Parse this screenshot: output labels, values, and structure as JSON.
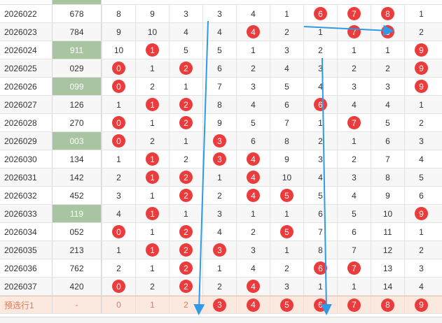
{
  "rows": [
    {
      "issue": "2026022",
      "code": "678",
      "code_hl": false,
      "nums": [
        "8",
        "9",
        "3",
        "3",
        "4",
        "1",
        "6",
        "7",
        "8",
        "1"
      ],
      "balls": [
        false,
        false,
        false,
        false,
        false,
        false,
        true,
        true,
        true,
        false
      ]
    },
    {
      "issue": "2026023",
      "code": "784",
      "code_hl": false,
      "nums": [
        "9",
        "10",
        "4",
        "4",
        "4",
        "2",
        "1",
        "7",
        "8",
        "2"
      ],
      "balls": [
        false,
        false,
        false,
        false,
        true,
        false,
        false,
        true,
        true,
        false
      ]
    },
    {
      "issue": "2026024",
      "code": "911",
      "code_hl": true,
      "nums": [
        "10",
        "1",
        "5",
        "5",
        "1",
        "3",
        "2",
        "1",
        "1",
        "9"
      ],
      "balls": [
        false,
        true,
        false,
        false,
        false,
        false,
        false,
        false,
        false,
        true
      ]
    },
    {
      "issue": "2026025",
      "code": "029",
      "code_hl": false,
      "nums": [
        "0",
        "1",
        "2",
        "6",
        "2",
        "4",
        "3",
        "2",
        "2",
        "9"
      ],
      "balls": [
        true,
        false,
        true,
        false,
        false,
        false,
        false,
        false,
        false,
        true
      ]
    },
    {
      "issue": "2026026",
      "code": "099",
      "code_hl": true,
      "nums": [
        "0",
        "2",
        "1",
        "7",
        "3",
        "5",
        "4",
        "3",
        "3",
        "9"
      ],
      "balls": [
        true,
        false,
        false,
        false,
        false,
        false,
        false,
        false,
        false,
        true
      ]
    },
    {
      "issue": "2026027",
      "code": "126",
      "code_hl": false,
      "nums": [
        "1",
        "1",
        "2",
        "8",
        "4",
        "6",
        "6",
        "4",
        "4",
        "1"
      ],
      "balls": [
        false,
        true,
        true,
        false,
        false,
        false,
        true,
        false,
        false,
        false
      ]
    },
    {
      "issue": "2026028",
      "code": "270",
      "code_hl": false,
      "nums": [
        "0",
        "1",
        "2",
        "9",
        "5",
        "7",
        "1",
        "7",
        "5",
        "2"
      ],
      "balls": [
        true,
        false,
        true,
        false,
        false,
        false,
        false,
        true,
        false,
        false
      ]
    },
    {
      "issue": "2026029",
      "code": "003",
      "code_hl": true,
      "nums": [
        "0",
        "2",
        "1",
        "3",
        "6",
        "8",
        "2",
        "1",
        "6",
        "3"
      ],
      "balls": [
        true,
        false,
        false,
        true,
        false,
        false,
        false,
        false,
        false,
        false
      ]
    },
    {
      "issue": "2026030",
      "code": "134",
      "code_hl": false,
      "nums": [
        "1",
        "1",
        "2",
        "3",
        "4",
        "9",
        "3",
        "2",
        "7",
        "4"
      ],
      "balls": [
        false,
        true,
        false,
        true,
        true,
        false,
        false,
        false,
        false,
        false
      ]
    },
    {
      "issue": "2026031",
      "code": "142",
      "code_hl": false,
      "nums": [
        "2",
        "1",
        "2",
        "1",
        "4",
        "10",
        "4",
        "3",
        "8",
        "5"
      ],
      "balls": [
        false,
        true,
        true,
        false,
        true,
        false,
        false,
        false,
        false,
        false
      ]
    },
    {
      "issue": "2026032",
      "code": "452",
      "code_hl": false,
      "nums": [
        "3",
        "1",
        "2",
        "2",
        "4",
        "5",
        "5",
        "4",
        "9",
        "6"
      ],
      "balls": [
        false,
        false,
        true,
        false,
        true,
        true,
        false,
        false,
        false,
        false
      ]
    },
    {
      "issue": "2026033",
      "code": "119",
      "code_hl": true,
      "nums": [
        "4",
        "1",
        "1",
        "3",
        "1",
        "1",
        "6",
        "5",
        "10",
        "9"
      ],
      "balls": [
        false,
        true,
        false,
        false,
        false,
        false,
        false,
        false,
        false,
        true
      ]
    },
    {
      "issue": "2026034",
      "code": "052",
      "code_hl": false,
      "nums": [
        "0",
        "1",
        "2",
        "4",
        "2",
        "5",
        "7",
        "6",
        "11",
        "1"
      ],
      "balls": [
        true,
        false,
        true,
        false,
        false,
        true,
        false,
        false,
        false,
        false
      ]
    },
    {
      "issue": "2026035",
      "code": "213",
      "code_hl": false,
      "nums": [
        "1",
        "1",
        "2",
        "3",
        "3",
        "1",
        "8",
        "7",
        "12",
        "2"
      ],
      "balls": [
        false,
        true,
        true,
        true,
        false,
        false,
        false,
        false,
        false,
        false
      ]
    },
    {
      "issue": "2026036",
      "code": "762",
      "code_hl": false,
      "nums": [
        "2",
        "1",
        "2",
        "1",
        "4",
        "2",
        "6",
        "7",
        "13",
        "3"
      ],
      "balls": [
        false,
        false,
        true,
        false,
        false,
        false,
        true,
        true,
        false,
        false
      ]
    },
    {
      "issue": "2026037",
      "code": "420",
      "code_hl": false,
      "nums": [
        "0",
        "2",
        "2",
        "2",
        "4",
        "3",
        "1",
        "1",
        "14",
        "4"
      ],
      "balls": [
        true,
        false,
        true,
        false,
        true,
        false,
        false,
        false,
        false,
        false
      ]
    }
  ],
  "pick_row": {
    "label": "预选行1",
    "code": "-",
    "nums": [
      "0",
      "1",
      "2",
      "3",
      "4",
      "5",
      "6",
      "7",
      "8",
      "9"
    ],
    "balls": [
      false,
      false,
      false,
      true,
      true,
      true,
      true,
      true,
      true,
      true
    ]
  },
  "colors": {
    "ball": "#ea3c3c",
    "highlight": "#a9c4a0",
    "arrow": "#2f9be8",
    "pick_bg": "#fbe9df"
  }
}
